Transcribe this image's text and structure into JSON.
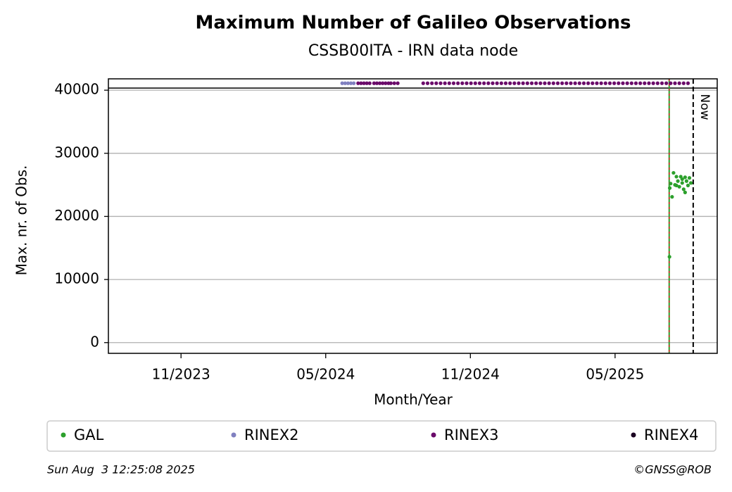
{
  "chart_data": {
    "type": "scatter",
    "title": "Maximum Number of Galileo Observations",
    "subtitle": "CSSB00ITA - IRN data node",
    "x_label": "Month/Year",
    "y_label": "Max. nr. of Obs.",
    "xlim": [
      2023.582,
      2025.686
    ],
    "xticks": [
      {
        "value": 2023.833,
        "label": "11/2023"
      },
      {
        "value": 2024.333,
        "label": "05/2024"
      },
      {
        "value": 2024.833,
        "label": "11/2024"
      },
      {
        "value": 2025.333,
        "label": "05/2025"
      }
    ],
    "ylim": [
      -1700,
      41800
    ],
    "yticks": [
      0,
      10000,
      20000,
      30000,
      40000
    ],
    "grid": true,
    "hline": 40330,
    "start_line": 2025.52,
    "now_line": 2025.603,
    "now_label": "Now",
    "series": [
      {
        "name": "GAL",
        "color": "#2ca02c",
        "x": [
          2025.521,
          2025.522,
          2025.525,
          2025.53,
          2025.535,
          2025.54,
          2025.545,
          2025.55,
          2025.555,
          2025.56,
          2025.565,
          2025.57,
          2025.575,
          2025.58,
          2025.585,
          2025.59,
          2025.595,
          2025.545,
          2025.565,
          2025.575
        ],
        "values": [
          13600,
          24500,
          25200,
          23100,
          26900,
          25000,
          26300,
          25600,
          24700,
          26300,
          25300,
          24300,
          26200,
          25600,
          24900,
          26100,
          25300,
          24900,
          25900,
          23800
        ]
      },
      {
        "name": "RINEX2",
        "color": "#8080c0",
        "x": [
          2024.39,
          2024.4,
          2024.41,
          2024.42,
          2024.43
        ],
        "values": [
          41100,
          41100,
          41100,
          41100,
          41100
        ]
      },
      {
        "name": "RINEX3",
        "color": "#6a0a6a",
        "x": [
          2024.445,
          2024.455,
          2024.465,
          2024.475,
          2024.485,
          2024.5,
          2024.51,
          2024.52,
          2024.53,
          2024.54,
          2024.55,
          2024.558,
          2024.57,
          2024.582,
          2024.67,
          2024.685,
          2024.7,
          2024.715,
          2024.73,
          2024.745,
          2024.76,
          2024.775,
          2024.79,
          2024.805,
          2024.82,
          2024.835,
          2024.85,
          2024.865,
          2024.88,
          2024.895,
          2024.91,
          2024.925,
          2024.94,
          2024.955,
          2024.97,
          2024.985,
          2025.0,
          2025.015,
          2025.03,
          2025.045,
          2025.06,
          2025.075,
          2025.09,
          2025.105,
          2025.12,
          2025.135,
          2025.15,
          2025.165,
          2025.18,
          2025.195,
          2025.21,
          2025.225,
          2025.24,
          2025.255,
          2025.27,
          2025.285,
          2025.3,
          2025.315,
          2025.33,
          2025.345,
          2025.36,
          2025.375,
          2025.39,
          2025.405,
          2025.42,
          2025.435,
          2025.45,
          2025.465,
          2025.48,
          2025.495,
          2025.51,
          2025.525,
          2025.54,
          2025.555,
          2025.57,
          2025.585
        ],
        "values": [
          41100,
          41100,
          41100,
          41100,
          41100,
          41100,
          41100,
          41100,
          41100,
          41100,
          41100,
          41100,
          41100,
          41100,
          41100,
          41100,
          41100,
          41100,
          41100,
          41100,
          41100,
          41100,
          41100,
          41100,
          41100,
          41100,
          41100,
          41100,
          41100,
          41100,
          41100,
          41100,
          41100,
          41100,
          41100,
          41100,
          41100,
          41100,
          41100,
          41100,
          41100,
          41100,
          41100,
          41100,
          41100,
          41100,
          41100,
          41100,
          41100,
          41100,
          41100,
          41100,
          41100,
          41100,
          41100,
          41100,
          41100,
          41100,
          41100,
          41100,
          41100,
          41100,
          41100,
          41100,
          41100,
          41100,
          41100,
          41100,
          41100,
          41100,
          41100,
          41100,
          41100,
          41100,
          41100,
          41100
        ]
      },
      {
        "name": "RINEX4",
        "color": "#1a0020",
        "x": [],
        "values": []
      }
    ],
    "footer_left": "Sun Aug  3 12:25:08 2025",
    "footer_right": "©GNSS@ROB"
  }
}
